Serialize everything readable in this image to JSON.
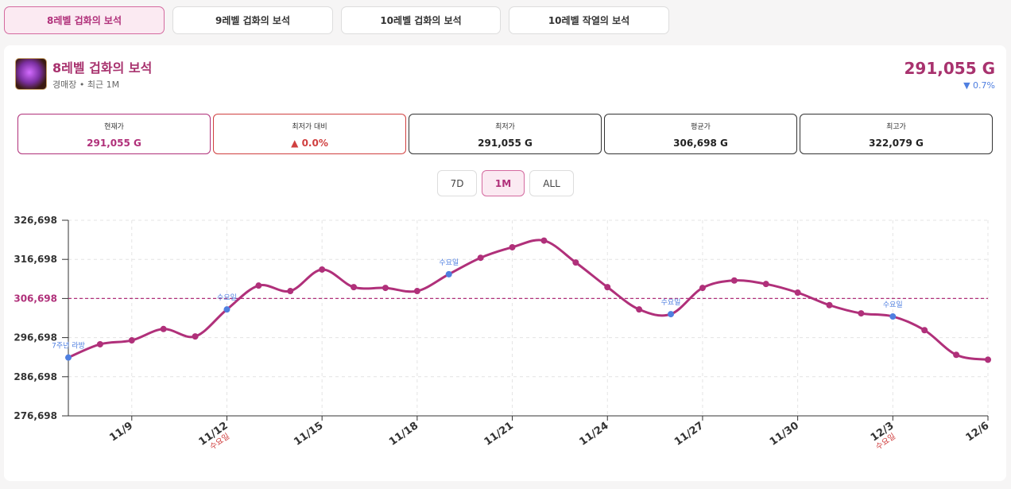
{
  "tabs": [
    "8레벨 겁화의 보석",
    "9레벨 겁화의 보석",
    "10레벨 겁화의 보석",
    "10레벨 작열의 보석"
  ],
  "header": {
    "title": "8레벨 겁화의 보석",
    "subtitle": "경매장 • 최근 1M",
    "price": "291,055 G",
    "change": "▼ 0.7%"
  },
  "stats": [
    {
      "label": "현재가",
      "value": "291,055 G"
    },
    {
      "label": "최저가 대비",
      "value": "▲ 0.0%"
    },
    {
      "label": "최저가",
      "value": "291,055 G"
    },
    {
      "label": "평균가",
      "value": "306,698 G"
    },
    {
      "label": "최고가",
      "value": "322,079 G"
    }
  ],
  "ranges": [
    "7D",
    "1M",
    "ALL"
  ],
  "chart_data": {
    "type": "line",
    "categories": [
      null,
      null,
      "11/9",
      null,
      null,
      "11/12",
      null,
      null,
      "11/15",
      null,
      null,
      "11/18",
      null,
      null,
      "11/21",
      null,
      null,
      "11/24",
      null,
      null,
      "11/27",
      null,
      null,
      "11/30",
      null,
      null,
      "12/3",
      null,
      null,
      "12/6"
    ],
    "series": [
      {
        "name": "8레벨 겁화의 보석",
        "color": "#b0307a",
        "values": [
          291600,
          295000,
          296000,
          298900,
          297000,
          303900,
          310000,
          308600,
          314100,
          309600,
          309400,
          308600,
          312900,
          317100,
          319800,
          321500,
          315900,
          309600,
          303900,
          302700,
          309400,
          311300,
          310400,
          308200,
          305000,
          302900,
          302100,
          298600,
          292300,
          291055
        ]
      }
    ],
    "ylim": [
      276698,
      326698
    ],
    "yticks": [
      {
        "value": 276698,
        "label": "276,698"
      },
      {
        "value": 286698,
        "label": "286,698"
      },
      {
        "value": 296698,
        "label": "296,698"
      },
      {
        "value": 306698,
        "label": "306,698"
      },
      {
        "value": 316698,
        "label": "316,698"
      },
      {
        "value": 326698,
        "label": "326,698"
      }
    ],
    "reference_line": {
      "value": 306698,
      "color": "#b0307a"
    },
    "annotations": [
      {
        "index": 0,
        "text": "7주년 라방"
      },
      {
        "index": 5,
        "text": "수요일"
      },
      {
        "index": 12,
        "text": "수요일"
      },
      {
        "index": 19,
        "text": "수요일"
      },
      {
        "index": 26,
        "text": "수요일"
      }
    ],
    "annotation_color": "#4f7fe0",
    "x_label_notes": [
      {
        "index": 5,
        "text": "수요일"
      },
      {
        "index": 26,
        "text": "수요일"
      }
    ],
    "grid": true
  }
}
